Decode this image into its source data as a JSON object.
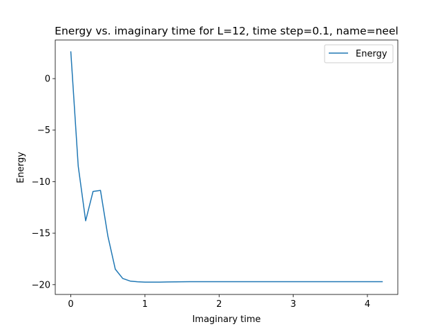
{
  "chart_data": {
    "type": "line",
    "title": "Energy vs. imaginary time for L=12, time step=0.1, name=neel",
    "xlabel": "Imaginary time",
    "ylabel": "Energy",
    "xlim": [
      -0.21,
      4.41
    ],
    "ylim": [
      -20.95,
      3.75
    ],
    "xticks": [
      0,
      1,
      2,
      3,
      4
    ],
    "xtick_labels": [
      "0",
      "1",
      "2",
      "3",
      "4"
    ],
    "yticks": [
      0,
      -5,
      -10,
      -15,
      -20
    ],
    "ytick_labels": [
      "0",
      "−5",
      "−10",
      "−15",
      "−20"
    ],
    "grid": false,
    "legend_position": "top-right",
    "series": [
      {
        "name": "Energy",
        "color": "#1f77b4",
        "x": [
          0.0,
          0.1,
          0.2,
          0.3,
          0.4,
          0.5,
          0.6,
          0.7,
          0.8,
          0.9,
          1.0,
          1.1,
          1.2,
          1.3,
          1.4,
          1.5,
          1.6,
          1.7,
          1.8,
          1.9,
          2.0,
          2.1,
          2.2,
          2.3,
          2.4,
          2.5,
          2.6,
          2.7,
          2.8,
          2.9,
          3.0,
          3.1,
          3.2,
          3.3,
          3.4,
          3.5,
          3.6,
          3.7,
          3.8,
          3.9,
          4.0,
          4.1,
          4.2
        ],
        "y": [
          2.6,
          -8.5,
          -13.8,
          -10.95,
          -10.85,
          -15.3,
          -18.5,
          -19.4,
          -19.65,
          -19.72,
          -19.75,
          -19.75,
          -19.75,
          -19.74,
          -19.73,
          -19.72,
          -19.71,
          -19.71,
          -19.71,
          -19.71,
          -19.71,
          -19.71,
          -19.71,
          -19.71,
          -19.71,
          -19.71,
          -19.71,
          -19.71,
          -19.71,
          -19.71,
          -19.71,
          -19.71,
          -19.71,
          -19.71,
          -19.71,
          -19.71,
          -19.71,
          -19.71,
          -19.71,
          -19.71,
          -19.71,
          -19.71,
          -19.71
        ]
      }
    ]
  }
}
